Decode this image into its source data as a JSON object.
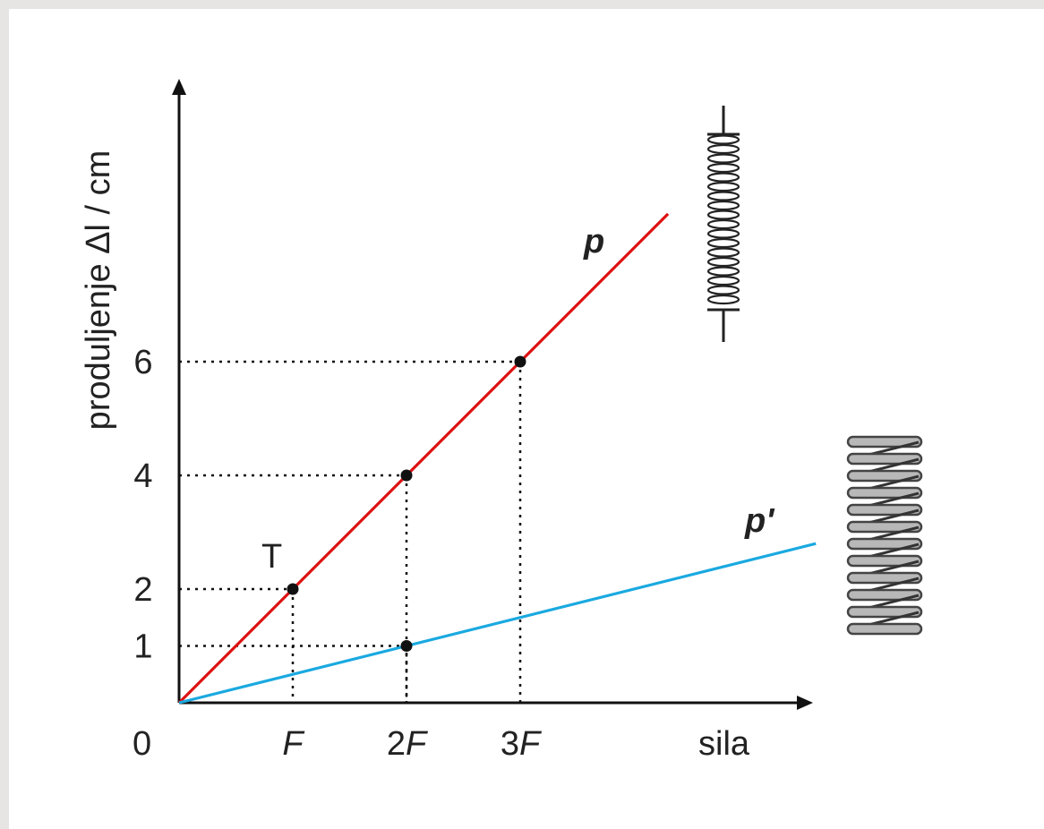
{
  "chart_data": {
    "type": "line",
    "xlabel": "sila",
    "ylabel": "produljenje Δl / cm",
    "origin_label": "0",
    "x_ticks": [
      {
        "value": 1,
        "label": "F"
      },
      {
        "value": 2,
        "label": "2F"
      },
      {
        "value": 3,
        "label": "3F"
      }
    ],
    "y_ticks": [
      1,
      2,
      4,
      6
    ],
    "xlim": [
      0,
      5.6
    ],
    "ylim": [
      0,
      11
    ],
    "grid": false,
    "series": [
      {
        "name": "p",
        "color": "#dd1111",
        "x": [
          0,
          4.3
        ],
        "y": [
          0,
          8.6
        ]
      },
      {
        "name": "p'",
        "color": "#1aa9e0",
        "x": [
          0,
          5.6
        ],
        "y": [
          0,
          2.8
        ]
      }
    ],
    "points": [
      {
        "x": 1,
        "y": 2
      },
      {
        "x": 2,
        "y": 4
      },
      {
        "x": 3,
        "y": 6
      },
      {
        "x": 2,
        "y": 1
      }
    ],
    "point_annotation": {
      "x": 1,
      "y": 2,
      "text": "T"
    },
    "springs": [
      {
        "name": "tight-spring-icon",
        "color": "#222222"
      },
      {
        "name": "wide-spring-icon",
        "color": "#555555"
      }
    ]
  }
}
